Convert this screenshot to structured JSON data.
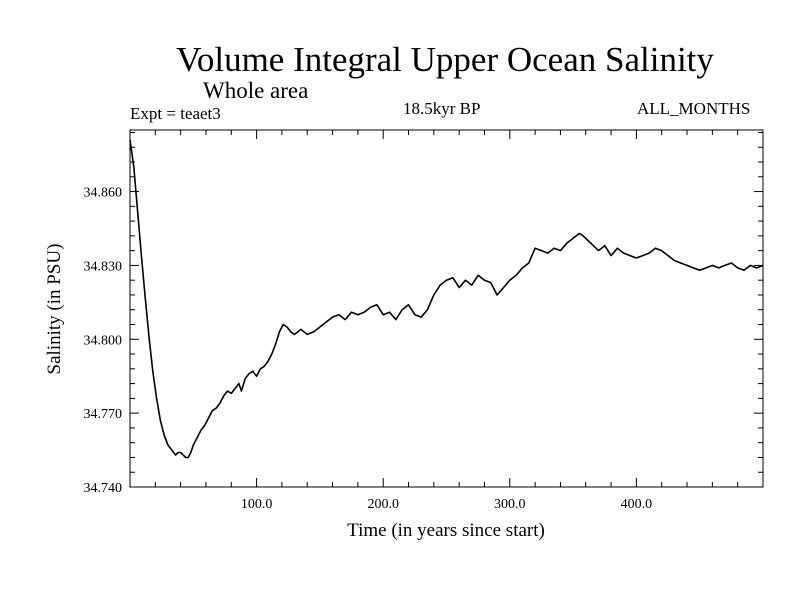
{
  "chart_data": {
    "type": "line",
    "title": "Volume Integral Upper Ocean Salinity",
    "subtitle": "Whole area",
    "annotations": {
      "left": "Expt = teaet3",
      "center": "18.5kyr BP",
      "right": "ALL_MONTHS"
    },
    "xlabel": "Time (in years since start)",
    "ylabel": "Salinity (in PSU)",
    "xlim": [
      0,
      500
    ],
    "ylim": [
      34.74,
      34.885
    ],
    "xticks": [
      100,
      200,
      300,
      400
    ],
    "xtick_labels": [
      "100.0",
      "200.0",
      "300.0",
      "400.0"
    ],
    "yticks": [
      34.74,
      34.77,
      34.8,
      34.83,
      34.86
    ],
    "ytick_labels": [
      "34.740",
      "34.770",
      "34.800",
      "34.830",
      "34.860"
    ],
    "grid": false,
    "series": [
      {
        "name": "Salinity",
        "x": [
          0,
          3,
          6,
          9,
          12,
          15,
          18,
          21,
          24,
          27,
          30,
          33,
          36,
          38,
          40,
          42,
          44,
          46,
          48,
          50,
          53,
          56,
          59,
          62,
          65,
          68,
          71,
          74,
          77,
          80,
          83,
          86,
          88,
          91,
          94,
          97,
          100,
          103,
          106,
          109,
          112,
          115,
          118,
          121,
          124,
          127,
          130,
          135,
          140,
          145,
          150,
          155,
          160,
          165,
          170,
          175,
          180,
          185,
          190,
          195,
          200,
          205,
          210,
          215,
          220,
          225,
          230,
          235,
          240,
          245,
          250,
          255,
          260,
          265,
          270,
          275,
          280,
          285,
          290,
          295,
          300,
          305,
          310,
          315,
          320,
          325,
          330,
          335,
          340,
          345,
          350,
          355,
          358,
          362,
          366,
          370,
          375,
          380,
          385,
          390,
          395,
          400,
          405,
          410,
          415,
          420,
          425,
          430,
          435,
          440,
          445,
          450,
          455,
          460,
          465,
          470,
          475,
          480,
          485,
          490,
          495,
          500
        ],
        "values": [
          34.881,
          34.87,
          34.852,
          34.834,
          34.817,
          34.801,
          34.787,
          34.776,
          34.767,
          34.761,
          34.757,
          34.755,
          34.753,
          34.754,
          34.754,
          34.753,
          34.752,
          34.752,
          34.754,
          34.757,
          34.76,
          34.763,
          34.765,
          34.768,
          34.771,
          34.772,
          34.774,
          34.777,
          34.779,
          34.778,
          34.78,
          34.782,
          34.779,
          34.784,
          34.786,
          34.787,
          34.785,
          34.788,
          34.789,
          34.791,
          34.794,
          34.798,
          34.803,
          34.806,
          34.805,
          34.803,
          34.802,
          34.804,
          34.802,
          34.803,
          34.805,
          34.807,
          34.809,
          34.81,
          34.808,
          34.811,
          34.81,
          34.811,
          34.813,
          34.814,
          34.81,
          34.811,
          34.808,
          34.812,
          34.814,
          34.81,
          34.809,
          34.812,
          34.818,
          34.822,
          34.824,
          34.825,
          34.821,
          34.824,
          34.822,
          34.826,
          34.824,
          34.823,
          34.818,
          34.821,
          34.824,
          34.826,
          34.829,
          34.831,
          34.837,
          34.836,
          34.835,
          34.837,
          34.836,
          34.839,
          34.841,
          34.843,
          34.842,
          34.84,
          34.838,
          34.836,
          34.838,
          34.834,
          34.837,
          34.835,
          34.834,
          34.833,
          34.834,
          34.835,
          34.837,
          34.836,
          34.834,
          34.832,
          34.831,
          34.83,
          34.829,
          34.828,
          34.829,
          34.83,
          34.829,
          34.83,
          34.831,
          34.829,
          34.828,
          34.83,
          34.829,
          34.83
        ]
      }
    ]
  }
}
